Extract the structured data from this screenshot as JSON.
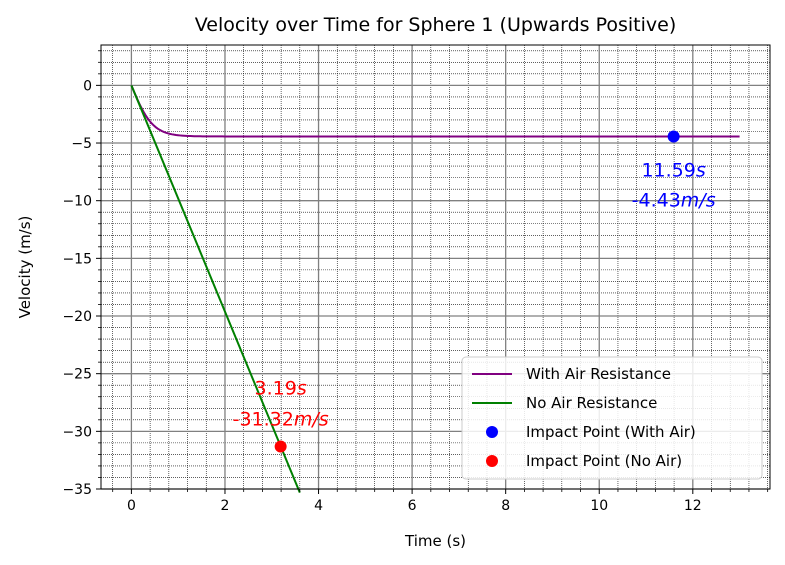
{
  "chart_data": {
    "type": "line",
    "title": "Velocity over Time for Sphere 1 (Upwards Positive)",
    "xlabel": "Time (s)",
    "ylabel": "Velocity (m/s)",
    "xlim": [
      -0.65,
      13.65
    ],
    "ylim": [
      -35,
      3.5
    ],
    "xticks": [
      0,
      2,
      4,
      6,
      8,
      10,
      12
    ],
    "yticks": [
      0,
      -5,
      -10,
      -15,
      -20,
      -25,
      -30,
      -35
    ],
    "grid": {
      "major": true,
      "minor": true
    },
    "legend_position": "lower-right",
    "series": [
      {
        "name": "With Air Resistance",
        "kind": "line",
        "color": "#800080",
        "terminal_velocity": -4.43,
        "x_start": 0,
        "x_end": 13
      },
      {
        "name": "No Air Resistance",
        "kind": "line",
        "color": "#008000",
        "acceleration": -9.81,
        "x_start": 0,
        "x_end": 3.6
      },
      {
        "name": "Impact Point (With Air)",
        "kind": "scatter",
        "color": "#0000ff",
        "x": [
          11.59
        ],
        "y": [
          -4.43
        ]
      },
      {
        "name": "Impact Point (No Air)",
        "kind": "scatter",
        "color": "#ff0000",
        "x": [
          3.19
        ],
        "y": [
          -31.32
        ]
      }
    ],
    "annotations": [
      {
        "time": "11.59",
        "velocity": "-4.43",
        "unit_time": "s",
        "unit_velocity": "m/s",
        "color": "#0000ff",
        "x": 11.59,
        "y_time": -7.3,
        "y_vel": -9.9
      },
      {
        "time": "3.19",
        "velocity": "-31.32",
        "unit_time": "s",
        "unit_velocity": "m/s",
        "color": "#ff0000",
        "x": 3.19,
        "y_time": -26.2,
        "y_vel": -28.9
      }
    ]
  }
}
